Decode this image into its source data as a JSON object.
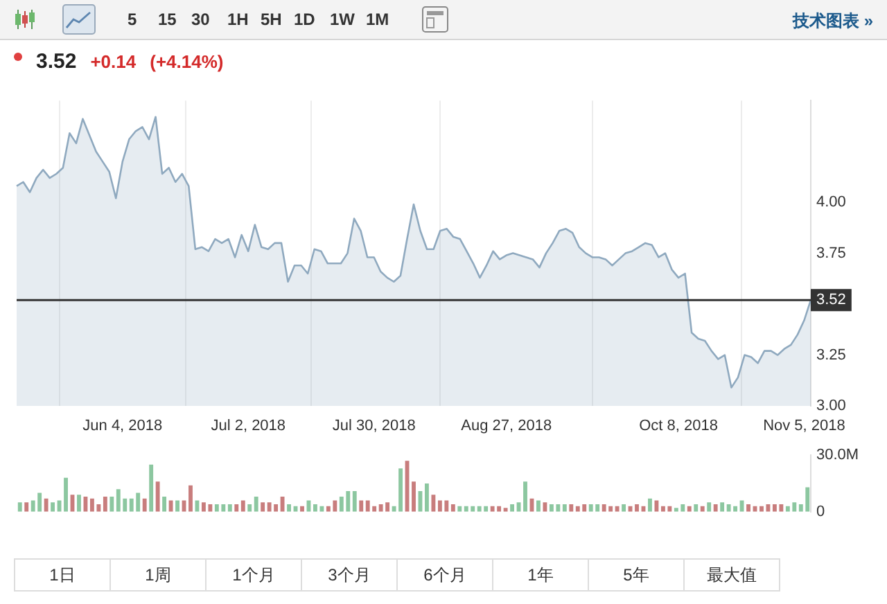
{
  "chart_data": [
    {
      "type": "other",
      "annotations": [
        "5",
        "15",
        "30",
        "1H",
        "5H",
        "1D",
        "1W",
        "1M",
        "技术图表 »"
      ]
    },
    {
      "type": "other",
      "title": "3.52",
      "annotations": [
        "+0.14",
        "(+4.14%)"
      ]
    },
    {
      "type": "area",
      "categories": [
        null,
        null,
        null,
        null,
        null,
        null,
        null,
        null,
        null,
        null,
        null,
        null,
        null,
        null,
        null,
        null,
        "Jun 4, 2018",
        null,
        null,
        null,
        null,
        null,
        null,
        null,
        null,
        null,
        null,
        null,
        null,
        null,
        null,
        null,
        null,
        null,
        null,
        "Jul 2, 2018",
        null,
        null,
        null,
        null,
        null,
        null,
        null,
        null,
        null,
        null,
        null,
        null,
        null,
        null,
        null,
        null,
        null,
        null,
        "Jul 30, 2018",
        null,
        null,
        null,
        null,
        null,
        null,
        null,
        null,
        null,
        null,
        null,
        null,
        null,
        null,
        null,
        null,
        null,
        null,
        null,
        "Aug 27, 2018",
        null,
        null,
        null,
        null,
        null,
        null,
        null,
        null,
        null,
        null,
        null,
        null,
        null,
        null,
        null,
        null,
        null,
        null,
        null,
        null,
        null,
        null,
        null,
        null,
        null,
        "Oct 8, 2018",
        null,
        null,
        null,
        null,
        null,
        null,
        null,
        null,
        null,
        null,
        null,
        null,
        null,
        null,
        null,
        null,
        null,
        null,
        "Nov 5, 2018",
        null
      ],
      "series": [
        {
          "color": "#8fa9bf",
          "values": [
            4.08,
            4.1,
            4.05,
            4.12,
            4.16,
            4.12,
            4.14,
            4.17,
            4.34,
            4.29,
            4.41,
            4.33,
            4.25,
            4.2,
            4.15,
            4.02,
            4.2,
            4.31,
            4.35,
            4.37,
            4.31,
            4.42,
            4.14,
            4.17,
            4.1,
            4.14,
            4.08,
            3.77,
            3.78,
            3.76,
            3.82,
            3.8,
            3.82,
            3.73,
            3.84,
            3.76,
            3.89,
            3.78,
            3.77,
            3.8,
            3.8,
            3.61,
            3.69,
            3.69,
            3.65,
            3.77,
            3.76,
            3.7,
            3.7,
            3.7,
            3.75,
            3.92,
            3.86,
            3.73,
            3.73,
            3.66,
            3.63,
            3.61,
            3.64,
            3.82,
            3.99,
            3.86,
            3.77,
            3.77,
            3.86,
            3.87,
            3.83,
            3.82,
            3.76,
            3.7,
            3.63,
            3.69,
            3.76,
            3.72,
            3.74,
            3.75,
            3.74,
            3.73,
            3.72,
            3.68,
            3.75,
            3.8,
            3.86,
            3.87,
            3.85,
            3.78,
            3.75,
            3.73,
            3.73,
            3.72,
            3.69,
            3.72,
            3.75,
            3.76,
            3.78,
            3.8,
            3.79,
            3.73,
            3.75,
            3.67,
            3.63,
            3.65,
            3.36,
            3.33,
            3.32,
            3.27,
            3.23,
            3.25,
            3.09,
            3.14,
            3.25,
            3.24,
            3.21,
            3.27,
            3.27,
            3.25,
            3.28,
            3.3,
            3.35,
            3.42,
            3.52
          ]
        }
      ],
      "ylim": [
        3,
        4.5
      ],
      "yticks": [
        {
          "value": 3,
          "label": "3.00"
        },
        {
          "value": 3.25,
          "label": "3.25"
        },
        {
          "value": 3.75,
          "label": "3.75"
        },
        {
          "value": 4,
          "label": "4.00"
        }
      ],
      "ref_lines": [
        {
          "axis": "y",
          "value": 3.52,
          "label": "3.52",
          "color": "#333333"
        }
      ],
      "grid": "x",
      "legend": false
    },
    {
      "type": "bar",
      "categories": [
        null,
        null,
        null,
        null,
        null,
        null,
        null,
        null,
        null,
        null,
        null,
        null,
        null,
        null,
        null,
        null,
        null,
        null,
        null,
        null,
        null,
        null,
        null,
        null,
        null,
        null,
        null,
        null,
        null,
        null,
        null,
        null,
        null,
        null,
        null,
        null,
        null,
        null,
        null,
        null,
        null,
        null,
        null,
        null,
        null,
        null,
        null,
        null,
        null,
        null,
        null,
        null,
        null,
        null,
        null,
        null,
        null,
        null,
        null,
        null,
        null,
        null,
        null,
        null,
        null,
        null,
        null,
        null,
        null,
        null,
        null,
        null,
        null,
        null,
        null,
        null,
        null,
        null,
        null,
        null,
        null,
        null,
        null,
        null,
        null,
        null,
        null,
        null,
        null,
        null,
        null,
        null,
        null,
        null,
        null,
        null,
        null,
        null,
        null,
        null,
        null,
        null,
        null,
        null,
        null,
        null,
        null,
        null,
        null,
        null,
        null,
        null,
        null,
        null,
        null,
        null,
        null,
        null,
        null,
        null,
        null
      ],
      "values": [
        5,
        5,
        6,
        10,
        7,
        5,
        6,
        18,
        9,
        9,
        8,
        7,
        4,
        8,
        8,
        12,
        7,
        7,
        10,
        7,
        25,
        16,
        8,
        6,
        6,
        6,
        14,
        6,
        5,
        4,
        4,
        4,
        4,
        4,
        6,
        4,
        8,
        5,
        5,
        4,
        8,
        4,
        3,
        3,
        6,
        4,
        3,
        3,
        6,
        8,
        11,
        11,
        6,
        6,
        3,
        4,
        5,
        3,
        23,
        27,
        16,
        11,
        15,
        9,
        6,
        6,
        4,
        3,
        3,
        3,
        3,
        3,
        3,
        3,
        2,
        4,
        5,
        16,
        7,
        6,
        5,
        4,
        4,
        4,
        4,
        3,
        4,
        4,
        4,
        4,
        3,
        3,
        4,
        3,
        4,
        3,
        7,
        6,
        3,
        3,
        2,
        4,
        3,
        4,
        3,
        5,
        4,
        5,
        4,
        3,
        6,
        4,
        3,
        3,
        4,
        4,
        4,
        3,
        5,
        4,
        13
      ],
      "colors": [
        "#8cc7a0",
        "#c87d7d",
        "#8cc7a0",
        "#8cc7a0",
        "#c87d7d",
        "#8cc7a0",
        "#8cc7a0",
        "#8cc7a0",
        "#c87d7d",
        "#8cc7a0",
        "#c87d7d",
        "#c87d7d",
        "#c87d7d",
        "#c87d7d",
        "#8cc7a0",
        "#8cc7a0",
        "#8cc7a0",
        "#8cc7a0",
        "#8cc7a0",
        "#c87d7d",
        "#8cc7a0",
        "#c87d7d",
        "#8cc7a0",
        "#c87d7d",
        "#8cc7a0",
        "#c87d7d",
        "#c87d7d",
        "#8cc7a0",
        "#c87d7d",
        "#c87d7d",
        "#8cc7a0",
        "#8cc7a0",
        "#8cc7a0",
        "#c87d7d",
        "#c87d7d",
        "#8cc7a0",
        "#8cc7a0",
        "#c87d7d",
        "#c87d7d",
        "#c87d7d",
        "#c87d7d",
        "#8cc7a0",
        "#8cc7a0",
        "#c87d7d",
        "#8cc7a0",
        "#8cc7a0",
        "#8cc7a0",
        "#c87d7d",
        "#c87d7d",
        "#8cc7a0",
        "#8cc7a0",
        "#8cc7a0",
        "#c87d7d",
        "#c87d7d",
        "#c87d7d",
        "#c87d7d",
        "#c87d7d",
        "#8cc7a0",
        "#8cc7a0",
        "#c87d7d",
        "#c87d7d",
        "#8cc7a0",
        "#8cc7a0",
        "#c87d7d",
        "#c87d7d",
        "#c87d7d",
        "#c87d7d",
        "#8cc7a0",
        "#8cc7a0",
        "#8cc7a0",
        "#8cc7a0",
        "#8cc7a0",
        "#c87d7d",
        "#c87d7d",
        "#c87d7d",
        "#8cc7a0",
        "#8cc7a0",
        "#8cc7a0",
        "#c87d7d",
        "#8cc7a0",
        "#c87d7d",
        "#8cc7a0",
        "#8cc7a0",
        "#8cc7a0",
        "#c87d7d",
        "#c87d7d",
        "#c87d7d",
        "#8cc7a0",
        "#8cc7a0",
        "#c87d7d",
        "#c87d7d",
        "#c87d7d",
        "#8cc7a0",
        "#c87d7d",
        "#c87d7d",
        "#c87d7d",
        "#8cc7a0",
        "#c87d7d",
        "#c87d7d",
        "#c87d7d",
        "#8cc7a0",
        "#8cc7a0",
        "#c87d7d",
        "#8cc7a0",
        "#c87d7d",
        "#8cc7a0",
        "#c87d7d",
        "#8cc7a0",
        "#8cc7a0",
        "#8cc7a0",
        "#8cc7a0",
        "#c87d7d",
        "#c87d7d",
        "#c87d7d",
        "#c87d7d",
        "#c87d7d",
        "#c87d7d",
        "#8cc7a0",
        "#8cc7a0",
        "#8cc7a0",
        "#8cc7a0"
      ],
      "ylim": [
        0,
        30
      ],
      "yticks": [
        {
          "value": 0,
          "label": "0"
        },
        {
          "value": 30,
          "label": "30.0M"
        }
      ],
      "tick_labels": "y",
      "legend": false
    },
    {
      "type": "other",
      "annotations": [
        "1日",
        "1周",
        "1个月",
        "3个月",
        "6个月",
        "1年",
        "5年",
        "最大值"
      ]
    }
  ]
}
